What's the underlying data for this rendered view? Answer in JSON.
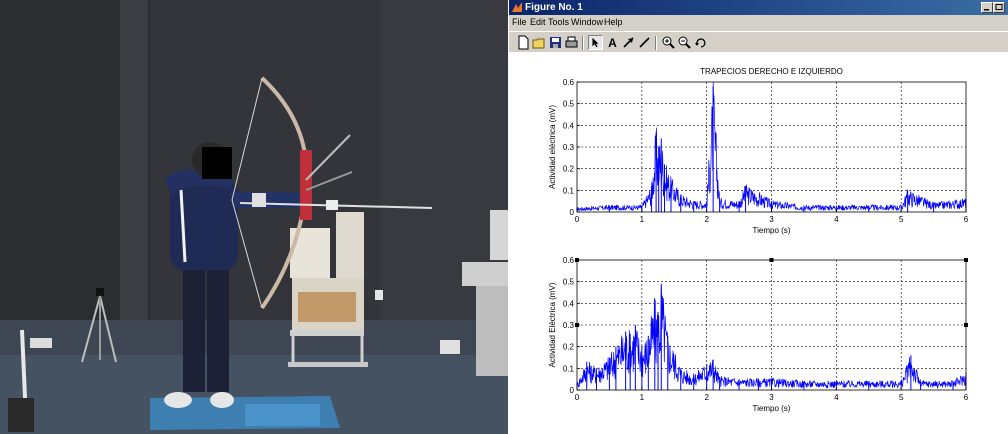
{
  "window": {
    "title": "Figure No. 1"
  },
  "menu": [
    "File",
    "Edit",
    "Tools",
    "Window",
    "Help"
  ],
  "toolbar": {
    "buttons": [
      "new-figure-icon",
      "open-icon",
      "save-icon",
      "print-icon",
      "select-arrow-icon",
      "insert-text-icon",
      "insert-arrow-icon",
      "insert-line-icon",
      "zoom-in-icon",
      "zoom-out-icon",
      "rotate-3d-icon"
    ],
    "text_tool_label": "A"
  },
  "colors": {
    "signal": "#0000ff",
    "titlebar": "#0a246a"
  },
  "chart_data": [
    {
      "type": "line",
      "title": "TRAPECIOS DERECHO E IZQUIERDO",
      "xlabel": "Tiempo (s)",
      "ylabel": "Actividad eléctrica (mV)",
      "xlim": [
        0,
        6
      ],
      "ylim": [
        0,
        0.6
      ],
      "xticks": [
        "0",
        "1",
        "2",
        "3",
        "4",
        "5",
        "6"
      ],
      "yticks": [
        "0",
        "0.1",
        "0.2",
        "0.3",
        "0.4",
        "0.5",
        "0.6"
      ],
      "grid": true,
      "series": [
        {
          "x": [
            0,
            0.5,
            1.0,
            1.15,
            1.22,
            1.26,
            1.3,
            1.35,
            1.45,
            1.6,
            1.8,
            2.0,
            2.1,
            2.2,
            2.5,
            2.6,
            3.0,
            3.5,
            4.0,
            4.5,
            5.0,
            5.1,
            5.5,
            6.0
          ],
          "y": [
            0.02,
            0.03,
            0.03,
            0.12,
            0.37,
            0.3,
            0.34,
            0.22,
            0.15,
            0.08,
            0.05,
            0.05,
            0.58,
            0.06,
            0.05,
            0.12,
            0.05,
            0.03,
            0.03,
            0.03,
            0.03,
            0.1,
            0.04,
            0.06
          ]
        }
      ]
    },
    {
      "type": "line",
      "title": "",
      "xlabel": "Tiempo (s)",
      "ylabel": "Actividad Eléctrica (mV)",
      "xlim": [
        0,
        6
      ],
      "ylim": [
        0,
        0.6
      ],
      "xticks": [
        "0",
        "1",
        "2",
        "3",
        "4",
        "5",
        "6"
      ],
      "yticks": [
        "0",
        "0.1",
        "0.2",
        "0.3",
        "0.4",
        "0.5",
        "0.6"
      ],
      "grid": true,
      "series": [
        {
          "x": [
            0,
            0.15,
            0.3,
            0.5,
            0.6,
            0.75,
            0.82,
            0.9,
            1.0,
            1.1,
            1.2,
            1.25,
            1.3,
            1.4,
            1.6,
            1.8,
            2.0,
            2.1,
            2.2,
            2.5,
            2.8,
            3.0,
            3.5,
            4.0,
            4.5,
            5.0,
            5.15,
            5.3,
            5.8,
            6.0
          ],
          "y": [
            0.03,
            0.13,
            0.1,
            0.15,
            0.2,
            0.27,
            0.26,
            0.3,
            0.2,
            0.25,
            0.4,
            0.36,
            0.49,
            0.25,
            0.1,
            0.07,
            0.12,
            0.14,
            0.06,
            0.05,
            0.05,
            0.05,
            0.04,
            0.04,
            0.04,
            0.04,
            0.16,
            0.04,
            0.04,
            0.08
          ]
        }
      ]
    }
  ]
}
